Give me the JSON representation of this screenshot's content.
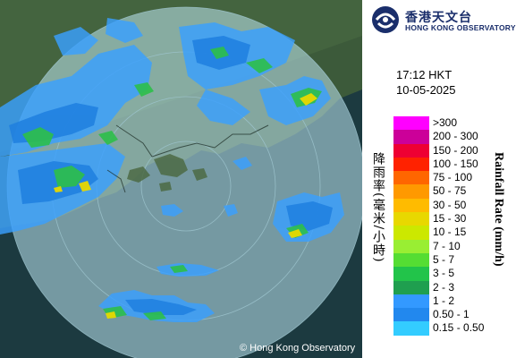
{
  "header": {
    "org_name_zh": "香港天文台",
    "org_name_en": "HONG KONG OBSERVATORY",
    "time": "17:12 HKT",
    "date": "10-05-2025"
  },
  "legend": {
    "title_zh": "降雨率(毫米/小時)",
    "title_en": "Rainfall Rate (mm/h)",
    "items": [
      {
        "label": ">300",
        "color": "#ff00ff"
      },
      {
        "label": "200 - 300",
        "color": "#cc0099"
      },
      {
        "label": "150 - 200",
        "color": "#ee0033"
      },
      {
        "label": "100 - 150",
        "color": "#ff2200"
      },
      {
        "label": "75 - 100",
        "color": "#ff6600"
      },
      {
        "label": "50 - 75",
        "color": "#ff9900"
      },
      {
        "label": "30 - 50",
        "color": "#ffbb00"
      },
      {
        "label": "15 - 30",
        "color": "#e8d800"
      },
      {
        "label": "10 - 15",
        "color": "#cce800"
      },
      {
        "label": "7 - 10",
        "color": "#99ee33"
      },
      {
        "label": "5 - 7",
        "color": "#55dd33"
      },
      {
        "label": "3 - 5",
        "color": "#22c44a"
      },
      {
        "label": "2 - 3",
        "color": "#1f9f4f"
      },
      {
        "label": "1 - 2",
        "color": "#3399ff"
      },
      {
        "label": "0.50 - 1",
        "color": "#2288ee"
      },
      {
        "label": "0.15 - 0.50",
        "color": "#33ccff"
      }
    ]
  },
  "copyright": "© Hong Kong Observatory"
}
